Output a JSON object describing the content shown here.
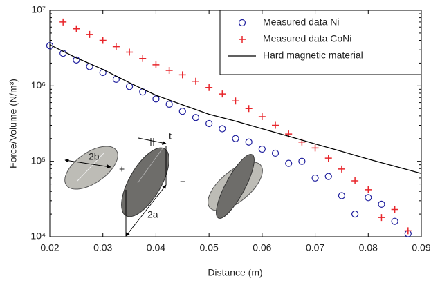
{
  "chart_data": {
    "type": "scatter",
    "x_label": "Distance (m)",
    "y_label": "Force/Volume (N/m³)",
    "log_y": true,
    "xlim": [
      0.02,
      0.09
    ],
    "xticks": [
      0.02,
      0.03,
      0.04,
      0.05,
      0.06,
      0.07,
      0.08,
      0.09
    ],
    "ylim": [
      10000,
      10000000
    ],
    "yticks": [
      {
        "value": 10000,
        "label": "10⁴"
      },
      {
        "value": 100000,
        "label": "10⁵"
      },
      {
        "value": 1000000,
        "label": "10⁶"
      },
      {
        "value": 10000000,
        "label": "10⁷"
      }
    ],
    "legend": "upper right",
    "series": [
      {
        "name": "Measured data Ni",
        "marker": "circle",
        "color": "#1f1f9e",
        "x": [
          0.02,
          0.0225,
          0.025,
          0.0275,
          0.03,
          0.0325,
          0.035,
          0.0375,
          0.04,
          0.0425,
          0.045,
          0.0475,
          0.05,
          0.0525,
          0.055,
          0.0575,
          0.06,
          0.0625,
          0.065,
          0.0675,
          0.07,
          0.0725,
          0.075,
          0.0775,
          0.08,
          0.0825,
          0.085,
          0.0875
        ],
        "values": [
          3400000,
          2700000,
          2200000,
          1800000,
          1500000,
          1220000,
          980000,
          830000,
          670000,
          570000,
          460000,
          380000,
          316000,
          270000,
          200000,
          180000,
          145000,
          128000,
          94000,
          100000,
          60000,
          63000,
          35000,
          20000,
          33000,
          27000,
          16000,
          11000
        ]
      },
      {
        "name": "Measured data CoNi",
        "marker": "plus",
        "color": "#e8262b",
        "x": [
          0.0225,
          0.025,
          0.0275,
          0.03,
          0.0325,
          0.035,
          0.0375,
          0.04,
          0.0425,
          0.045,
          0.0475,
          0.05,
          0.0525,
          0.055,
          0.0575,
          0.06,
          0.0625,
          0.065,
          0.0675,
          0.07,
          0.0725,
          0.075,
          0.0775,
          0.08,
          0.0825,
          0.085,
          0.0875
        ],
        "values": [
          7000000,
          5700000,
          4800000,
          4000000,
          3300000,
          2800000,
          2300000,
          1900000,
          1600000,
          1400000,
          1150000,
          950000,
          780000,
          630000,
          500000,
          390000,
          300000,
          230000,
          180000,
          150000,
          110000,
          79000,
          55000,
          42000,
          18000,
          23000,
          12000
        ]
      },
      {
        "name": "Hard magnetic material",
        "marker": "line",
        "color": "#000000",
        "x": [
          0.02,
          0.025,
          0.03,
          0.035,
          0.04,
          0.045,
          0.05,
          0.055,
          0.06,
          0.065,
          0.07,
          0.075,
          0.08,
          0.085,
          0.09
        ],
        "values": [
          3500000,
          2350000,
          1650000,
          1100000,
          750000,
          560000,
          420000,
          340000,
          270000,
          215000,
          170000,
          135000,
          107000,
          86000,
          69000
        ]
      }
    ],
    "annotations": [
      "2b",
      "+",
      "t",
      "2a",
      "="
    ]
  }
}
